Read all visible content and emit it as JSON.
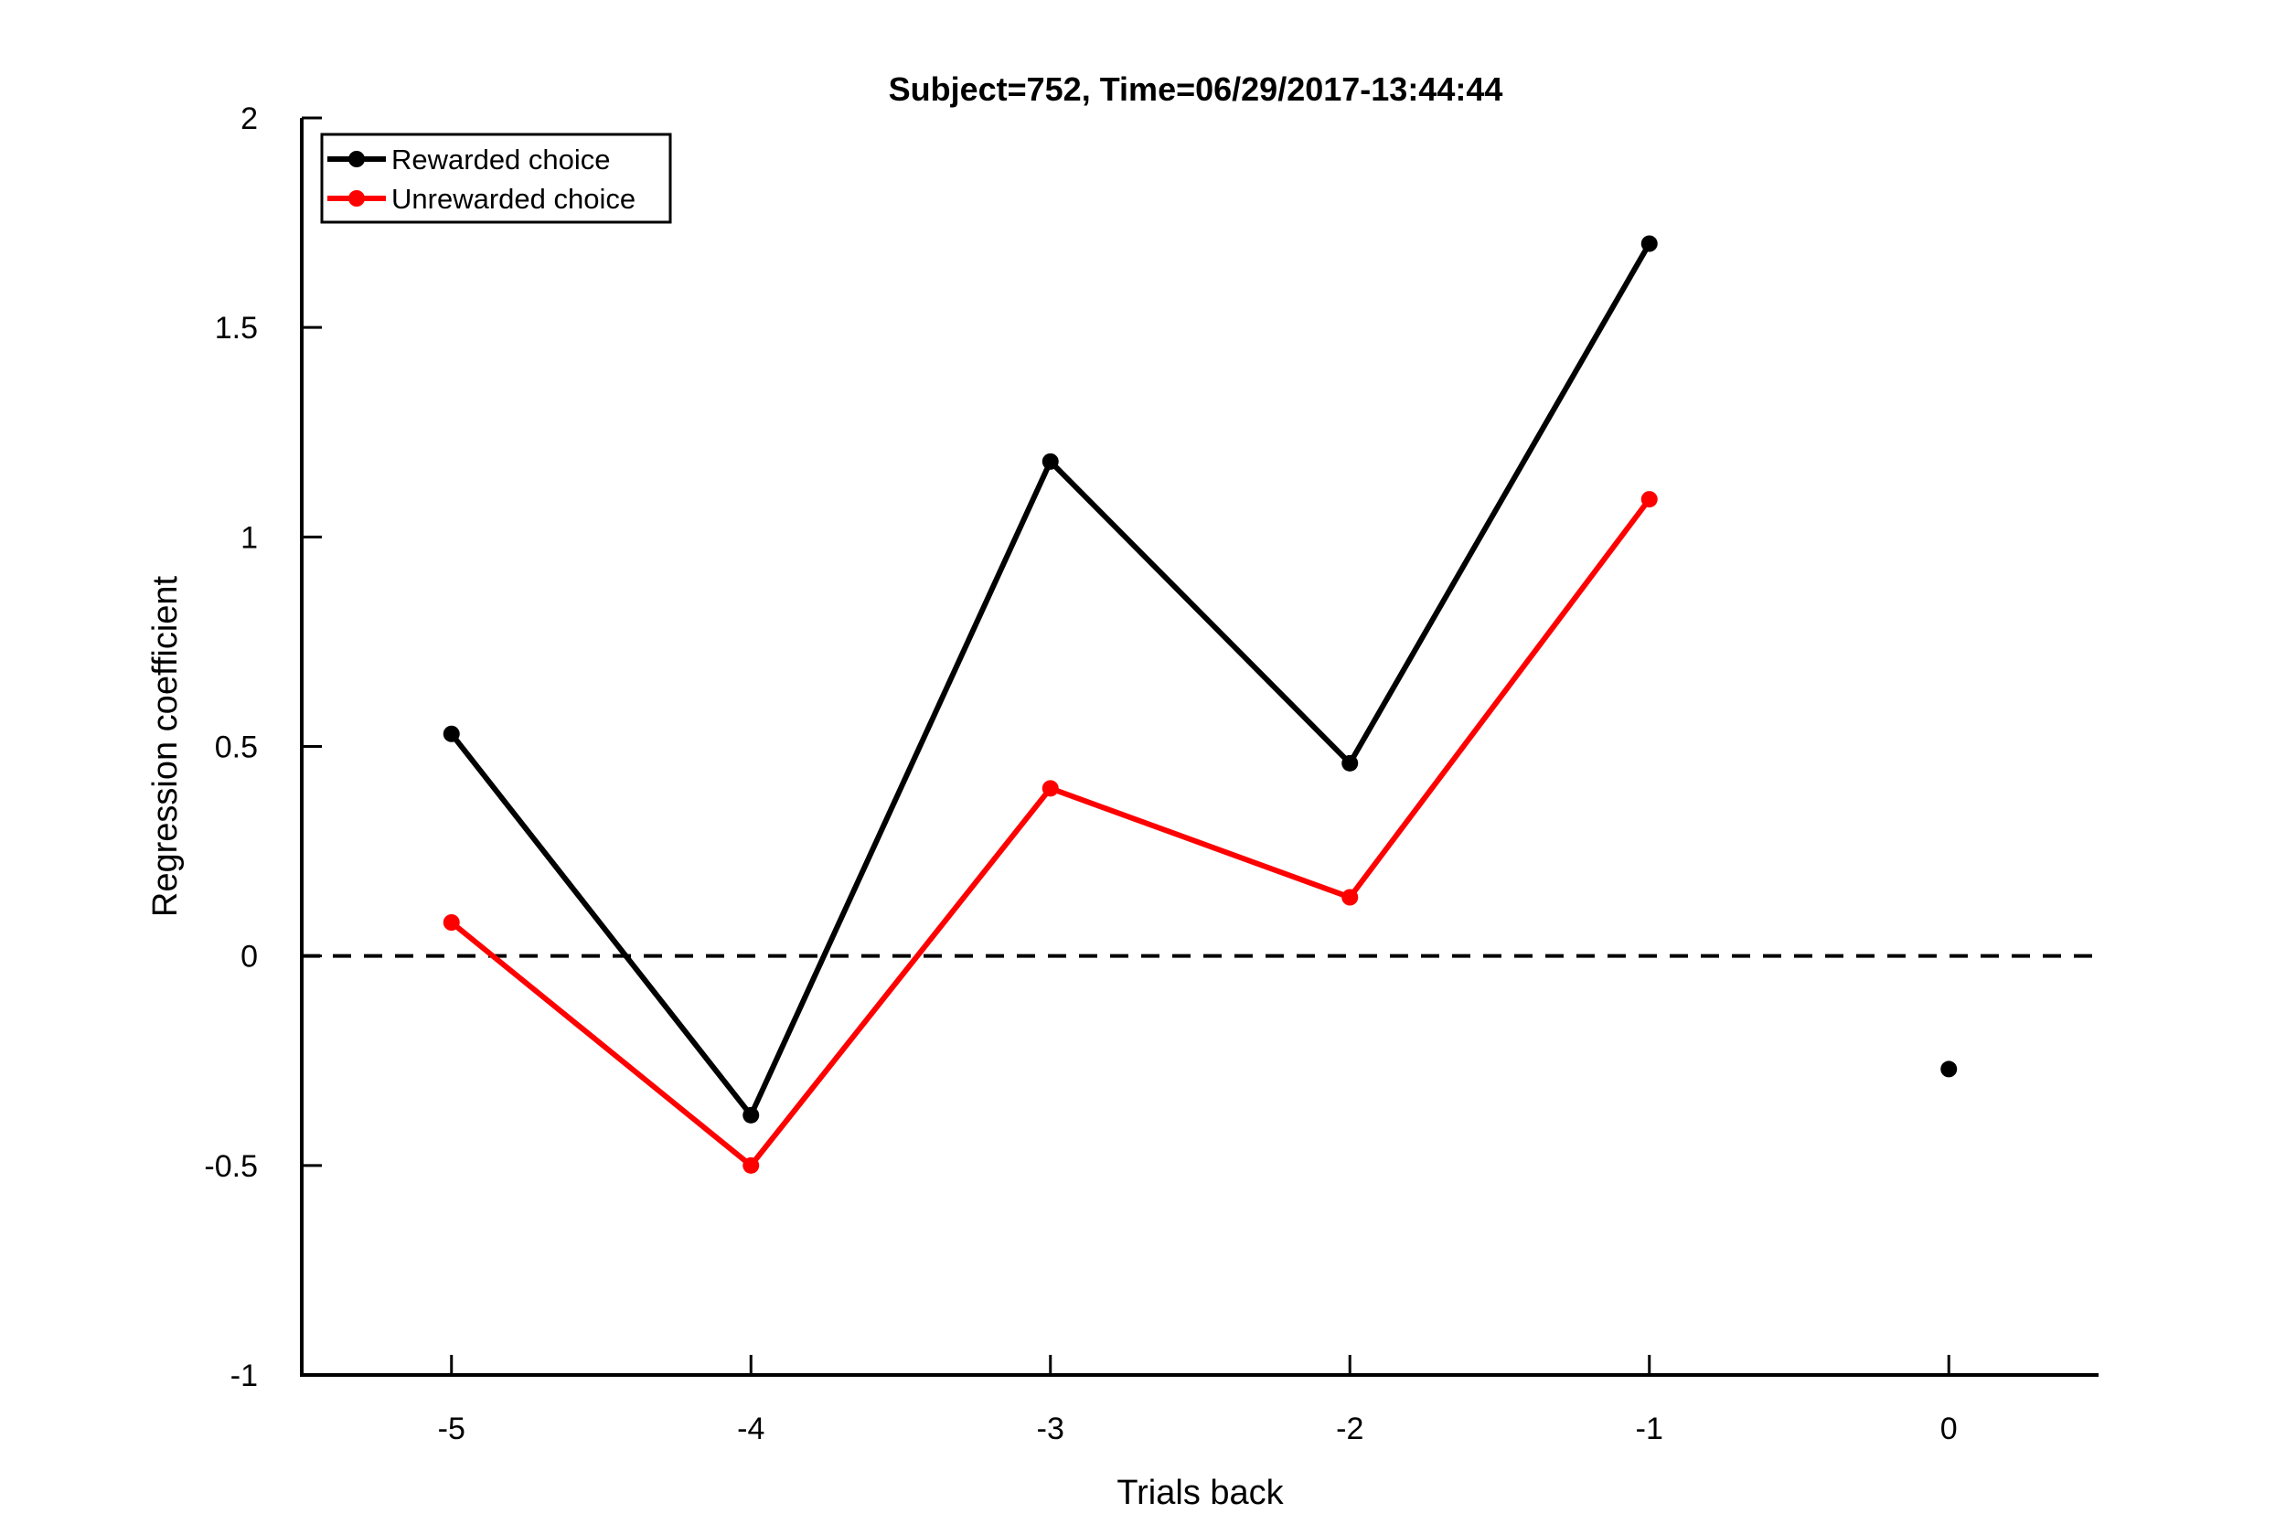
{
  "chart_data": {
    "type": "line",
    "title": "Subject=752, Time=06/29/2017-13:44:44",
    "xlabel": "Trials back",
    "ylabel": "Regression coefficient",
    "xlim": [
      -5.5,
      0.5
    ],
    "ylim": [
      -1,
      2
    ],
    "xticks": [
      -5,
      -4,
      -3,
      -2,
      -1,
      0
    ],
    "yticks": [
      -1,
      -0.5,
      0,
      0.5,
      1,
      1.5,
      2
    ],
    "xtick_labels": [
      "-5",
      "-4",
      "-3",
      "-2",
      "-1",
      "0"
    ],
    "ytick_labels": [
      "-1",
      "-0.5",
      "0",
      "0.5",
      "1",
      "1.5",
      "2"
    ],
    "grid": false,
    "legend_position": "top-left",
    "reference_line": {
      "y": 0,
      "style": "dashed",
      "color": "#000000"
    },
    "series": [
      {
        "name": "Rewarded choice",
        "color": "#000000",
        "x": [
          -5,
          -4,
          -3,
          -2,
          -1
        ],
        "y": [
          0.53,
          -0.38,
          1.18,
          0.46,
          1.7
        ]
      },
      {
        "name": "Unrewarded choice",
        "color": "#ff0000",
        "x": [
          -5,
          -4,
          -3,
          -2,
          -1
        ],
        "y": [
          0.08,
          -0.5,
          0.4,
          0.14,
          1.09
        ]
      }
    ],
    "extra_points": [
      {
        "x": 0,
        "y": -0.27,
        "color": "#000000"
      }
    ]
  }
}
